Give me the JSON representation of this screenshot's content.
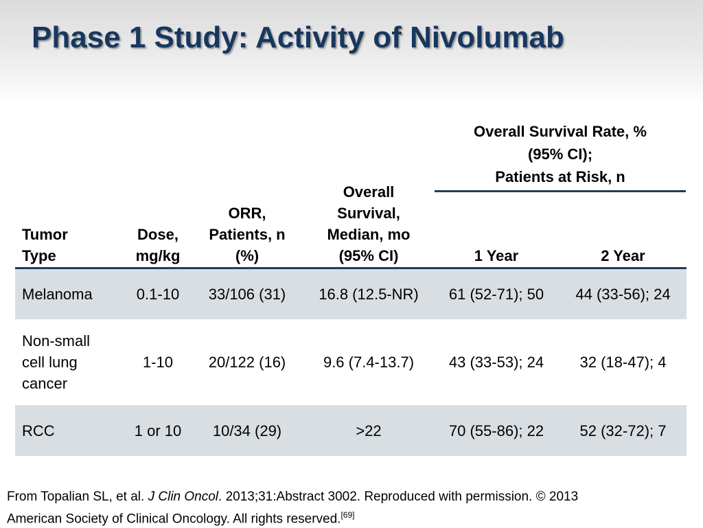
{
  "slide": {
    "title": "Phase 1 Study: Activity of Nivolumab"
  },
  "table": {
    "headers": {
      "tumor_type": [
        "Tumor",
        "Type"
      ],
      "dose": [
        "Dose,",
        "mg/kg"
      ],
      "orr": [
        "ORR,",
        "Patients, n",
        "(%)"
      ],
      "overall_survival": [
        "Overall",
        "Survival,",
        "Median, mo",
        "(95% CI)"
      ],
      "os_rate_group": [
        "Overall Survival Rate, %",
        "(95% CI);",
        "Patients at Risk, n"
      ],
      "one_year": "1 Year",
      "two_year": "2 Year"
    },
    "rows": [
      {
        "tumor_type": [
          "Melanoma"
        ],
        "dose": "0.1-10",
        "orr": "33/106 (31)",
        "os_median": "16.8 (12.5-NR)",
        "one_year": "61 (52-71); 50",
        "two_year": "44 (33-56); 24"
      },
      {
        "tumor_type": [
          "Non-small",
          "cell lung",
          "cancer"
        ],
        "dose": "1-10",
        "orr": "20/122 (16)",
        "os_median": "9.6 (7.4-13.7)",
        "one_year": "43 (33-53); 24",
        "two_year": "32 (18-47); 4"
      },
      {
        "tumor_type": [
          "RCC"
        ],
        "dose": "1 or 10",
        "orr": "10/34 (29)",
        "os_median": ">22",
        "one_year": "70 (55-86); 22",
        "two_year": "52 (32-72); 7"
      }
    ],
    "row_shading": [
      "#d9dee2",
      "#ffffff",
      "#d9dee2"
    ]
  },
  "footer": {
    "prefix": "From Topalian SL, et al. ",
    "journal": "J Clin Oncol",
    "line1_rest": ". 2013;31:Abstract 3002. Reproduced with permission. © 2013",
    "line2": "American Society of Clinical Oncology.  All rights reserved.",
    "ref": "[69]"
  },
  "colors": {
    "title": "#17375e",
    "rule": "#1f3b5a",
    "row_shade": "#d9dee2"
  }
}
